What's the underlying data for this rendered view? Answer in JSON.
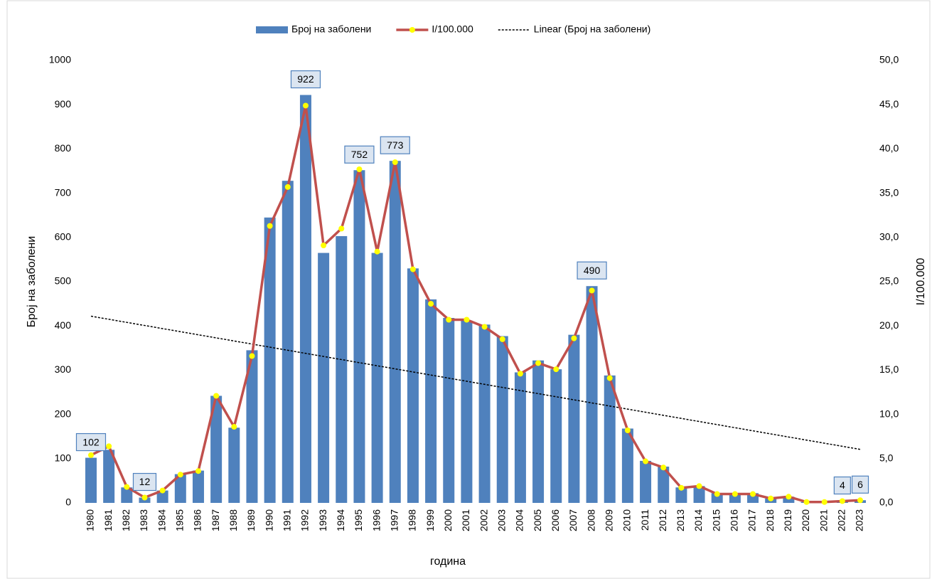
{
  "chart_data": {
    "type": "bar-line",
    "categories": [
      "1980",
      "1981",
      "1982",
      "1983",
      "1984",
      "1985",
      "1986",
      "1987",
      "1988",
      "1989",
      "1990",
      "1991",
      "1992",
      "1993",
      "1994",
      "1995",
      "1996",
      "1997",
      "1998",
      "1999",
      "2000",
      "2001",
      "2002",
      "2003",
      "2004",
      "2005",
      "2006",
      "2007",
      "2008",
      "2009",
      "2010",
      "2011",
      "2012",
      "2013",
      "2014",
      "2015",
      "2016",
      "2017",
      "2018",
      "2019",
      "2020",
      "2021",
      "2022",
      "2023"
    ],
    "series": [
      {
        "name": "Број на заболени",
        "type": "bar",
        "color": "#4f81bd",
        "values": [
          102,
          120,
          35,
          12,
          28,
          65,
          73,
          242,
          170,
          345,
          645,
          728,
          922,
          565,
          603,
          752,
          565,
          773,
          530,
          460,
          418,
          412,
          403,
          377,
          295,
          322,
          302,
          380,
          490,
          288,
          168,
          95,
          82,
          35,
          38,
          22,
          22,
          22,
          10,
          14,
          2,
          2,
          4,
          6
        ],
        "labeled_indices": [
          0,
          3,
          12,
          15,
          17,
          28,
          42,
          43
        ]
      },
      {
        "name": "I/100.000",
        "type": "line",
        "axis": "y2",
        "color": "#c0504d",
        "marker_color": "#ffff00",
        "values": [
          5.4,
          6.4,
          1.8,
          0.6,
          1.4,
          3.2,
          3.6,
          12.1,
          8.6,
          16.6,
          31.3,
          35.7,
          44.9,
          29.1,
          31.0,
          37.7,
          28.4,
          38.5,
          26.4,
          22.5,
          20.7,
          20.7,
          19.9,
          18.5,
          14.6,
          15.8,
          15.1,
          18.6,
          24.0,
          14.1,
          8.2,
          4.7,
          4.0,
          1.7,
          1.9,
          1.0,
          1.0,
          1.0,
          0.5,
          0.7,
          0.1,
          0.1,
          0.2,
          0.3
        ]
      }
    ],
    "trendline": {
      "name": "Linear (Број на заболени)",
      "of_series": 0,
      "color": "#000000"
    },
    "xlabel": "година",
    "ylabel": "Број на заболени",
    "y2label": "I/100.000",
    "ylim": [
      0,
      1000
    ],
    "yticks": [
      0,
      100,
      200,
      300,
      400,
      500,
      600,
      700,
      800,
      900,
      1000
    ],
    "y2lim": [
      0,
      50
    ],
    "y2ticks": [
      {
        "value": 0,
        "label": "0,0"
      },
      {
        "value": 5,
        "label": "5,0"
      },
      {
        "value": 10,
        "label": "10,0"
      },
      {
        "value": 15,
        "label": "15,0"
      },
      {
        "value": 20,
        "label": "20,0"
      },
      {
        "value": 25,
        "label": "25,0"
      },
      {
        "value": 30,
        "label": "30,0"
      },
      {
        "value": 35,
        "label": "35,0"
      },
      {
        "value": 40,
        "label": "40,0"
      },
      {
        "value": 45,
        "label": "45,0"
      },
      {
        "value": 50,
        "label": "50,0"
      }
    ],
    "legend": "top",
    "grid": false
  }
}
